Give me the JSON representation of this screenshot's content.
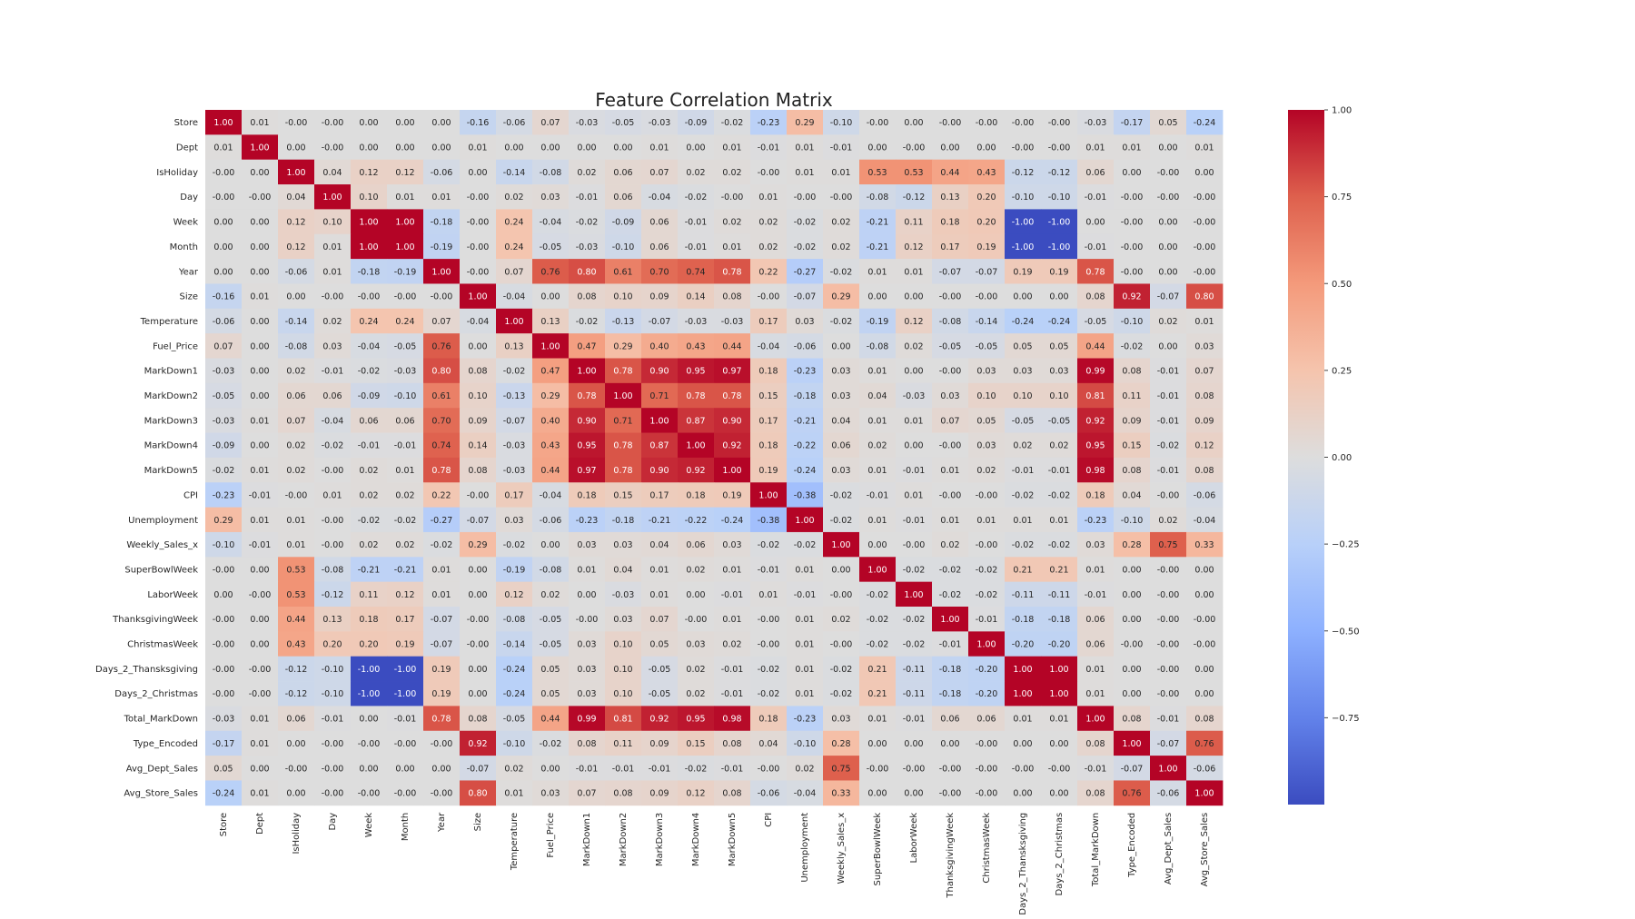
{
  "chart_data": {
    "type": "heatmap",
    "title": "Feature Correlation Matrix",
    "labels": [
      "Store",
      "Dept",
      "IsHoliday",
      "Day",
      "Week",
      "Month",
      "Year",
      "Size",
      "Temperature",
      "Fuel_Price",
      "MarkDown1",
      "MarkDown2",
      "MarkDown3",
      "MarkDown4",
      "MarkDown5",
      "CPI",
      "Unemployment",
      "Weekly_Sales_x",
      "SuperBowlWeek",
      "LaborWeek",
      "ThanksgivingWeek",
      "ChristmasWeek",
      "Days_2_Thansksgiving",
      "Days_2_Christmas",
      "Total_MarkDown",
      "Type_Encoded",
      "Avg_Dept_Sales",
      "Avg_Store_Sales"
    ],
    "matrix": [
      [
        1.0,
        0.01,
        -0.0,
        -0.0,
        0.0,
        0.0,
        0.0,
        -0.16,
        -0.06,
        0.07,
        -0.03,
        -0.05,
        -0.03,
        -0.09,
        -0.02,
        -0.23,
        0.29,
        -0.1,
        -0.0,
        0.0,
        -0.0,
        -0.0,
        -0.0,
        -0.0,
        -0.03,
        -0.17,
        0.05,
        -0.24
      ],
      [
        0.01,
        1.0,
        0.0,
        -0.0,
        0.0,
        0.0,
        0.0,
        0.01,
        0.0,
        0.0,
        0.0,
        0.0,
        0.01,
        0.0,
        0.01,
        -0.01,
        0.01,
        -0.01,
        0.0,
        -0.0,
        0.0,
        0.0,
        -0.0,
        -0.0,
        0.01,
        0.01,
        0.0,
        0.01
      ],
      [
        -0.0,
        0.0,
        1.0,
        0.04,
        0.12,
        0.12,
        -0.06,
        0.0,
        -0.14,
        -0.08,
        0.02,
        0.06,
        0.07,
        0.02,
        0.02,
        -0.0,
        0.01,
        0.01,
        0.53,
        0.53,
        0.44,
        0.43,
        -0.12,
        -0.12,
        0.06,
        0.0,
        -0.0,
        0.0
      ],
      [
        -0.0,
        -0.0,
        0.04,
        1.0,
        0.1,
        0.01,
        0.01,
        -0.0,
        0.02,
        0.03,
        -0.01,
        0.06,
        -0.04,
        -0.02,
        -0.0,
        0.01,
        -0.0,
        -0.0,
        -0.08,
        -0.12,
        0.13,
        0.2,
        -0.1,
        -0.1,
        -0.01,
        -0.0,
        -0.0,
        -0.0
      ],
      [
        0.0,
        0.0,
        0.12,
        0.1,
        1.0,
        1.0,
        -0.18,
        -0.0,
        0.24,
        -0.04,
        -0.02,
        -0.09,
        0.06,
        -0.01,
        0.02,
        0.02,
        -0.02,
        0.02,
        -0.21,
        0.11,
        0.18,
        0.2,
        -1.0,
        -1.0,
        0.0,
        -0.0,
        0.0,
        -0.0
      ],
      [
        0.0,
        0.0,
        0.12,
        0.01,
        1.0,
        1.0,
        -0.19,
        -0.0,
        0.24,
        -0.05,
        -0.03,
        -0.1,
        0.06,
        -0.01,
        0.01,
        0.02,
        -0.02,
        0.02,
        -0.21,
        0.12,
        0.17,
        0.19,
        -1.0,
        -1.0,
        -0.01,
        -0.0,
        0.0,
        -0.0
      ],
      [
        0.0,
        0.0,
        -0.06,
        0.01,
        -0.18,
        -0.19,
        1.0,
        -0.0,
        0.07,
        0.76,
        0.8,
        0.61,
        0.7,
        0.74,
        0.78,
        0.22,
        -0.27,
        -0.02,
        0.01,
        0.01,
        -0.07,
        -0.07,
        0.19,
        0.19,
        0.78,
        -0.0,
        0.0,
        -0.0
      ],
      [
        -0.16,
        0.01,
        0.0,
        -0.0,
        -0.0,
        -0.0,
        -0.0,
        1.0,
        -0.04,
        0.0,
        0.08,
        0.1,
        0.09,
        0.14,
        0.08,
        -0.0,
        -0.07,
        0.29,
        0.0,
        0.0,
        -0.0,
        -0.0,
        0.0,
        0.0,
        0.08,
        0.92,
        -0.07,
        0.8
      ],
      [
        -0.06,
        0.0,
        -0.14,
        0.02,
        0.24,
        0.24,
        0.07,
        -0.04,
        1.0,
        0.13,
        -0.02,
        -0.13,
        -0.07,
        -0.03,
        -0.03,
        0.17,
        0.03,
        -0.02,
        -0.19,
        0.12,
        -0.08,
        -0.14,
        -0.24,
        -0.24,
        -0.05,
        -0.1,
        0.02,
        0.01
      ],
      [
        0.07,
        0.0,
        -0.08,
        0.03,
        -0.04,
        -0.05,
        0.76,
        0.0,
        0.13,
        1.0,
        0.47,
        0.29,
        0.4,
        0.43,
        0.44,
        -0.04,
        -0.06,
        0.0,
        -0.08,
        0.02,
        -0.05,
        -0.05,
        0.05,
        0.05,
        0.44,
        -0.02,
        0.0,
        0.03
      ],
      [
        -0.03,
        0.0,
        0.02,
        -0.01,
        -0.02,
        -0.03,
        0.8,
        0.08,
        -0.02,
        0.47,
        1.0,
        0.78,
        0.9,
        0.95,
        0.97,
        0.18,
        -0.23,
        0.03,
        0.01,
        0.0,
        -0.0,
        0.03,
        0.03,
        0.03,
        0.99,
        0.08,
        -0.01,
        0.07
      ],
      [
        -0.05,
        0.0,
        0.06,
        0.06,
        -0.09,
        -0.1,
        0.61,
        0.1,
        -0.13,
        0.29,
        0.78,
        1.0,
        0.71,
        0.78,
        0.78,
        0.15,
        -0.18,
        0.03,
        0.04,
        -0.03,
        0.03,
        0.1,
        0.1,
        0.1,
        0.81,
        0.11,
        -0.01,
        0.08
      ],
      [
        -0.03,
        0.01,
        0.07,
        -0.04,
        0.06,
        0.06,
        0.7,
        0.09,
        -0.07,
        0.4,
        0.9,
        0.71,
        1.0,
        0.87,
        0.9,
        0.17,
        -0.21,
        0.04,
        0.01,
        0.01,
        0.07,
        0.05,
        -0.05,
        -0.05,
        0.92,
        0.09,
        -0.01,
        0.09
      ],
      [
        -0.09,
        0.0,
        0.02,
        -0.02,
        -0.01,
        -0.01,
        0.74,
        0.14,
        -0.03,
        0.43,
        0.95,
        0.78,
        0.87,
        1.0,
        0.92,
        0.18,
        -0.22,
        0.06,
        0.02,
        0.0,
        -0.0,
        0.03,
        0.02,
        0.02,
        0.95,
        0.15,
        -0.02,
        0.12
      ],
      [
        -0.02,
        0.01,
        0.02,
        -0.0,
        0.02,
        0.01,
        0.78,
        0.08,
        -0.03,
        0.44,
        0.97,
        0.78,
        0.9,
        0.92,
        1.0,
        0.19,
        -0.24,
        0.03,
        0.01,
        -0.01,
        0.01,
        0.02,
        -0.01,
        -0.01,
        0.98,
        0.08,
        -0.01,
        0.08
      ],
      [
        -0.23,
        -0.01,
        -0.0,
        0.01,
        0.02,
        0.02,
        0.22,
        -0.0,
        0.17,
        -0.04,
        0.18,
        0.15,
        0.17,
        0.18,
        0.19,
        1.0,
        -0.38,
        -0.02,
        -0.01,
        0.01,
        -0.0,
        -0.0,
        -0.02,
        -0.02,
        0.18,
        0.04,
        -0.0,
        -0.06
      ],
      [
        0.29,
        0.01,
        0.01,
        -0.0,
        -0.02,
        -0.02,
        -0.27,
        -0.07,
        0.03,
        -0.06,
        -0.23,
        -0.18,
        -0.21,
        -0.22,
        -0.24,
        -0.38,
        1.0,
        -0.02,
        0.01,
        -0.01,
        0.01,
        0.01,
        0.01,
        0.01,
        -0.23,
        -0.1,
        0.02,
        -0.04
      ],
      [
        -0.1,
        -0.01,
        0.01,
        -0.0,
        0.02,
        0.02,
        -0.02,
        0.29,
        -0.02,
        0.0,
        0.03,
        0.03,
        0.04,
        0.06,
        0.03,
        -0.02,
        -0.02,
        1.0,
        0.0,
        -0.0,
        0.02,
        -0.0,
        -0.02,
        -0.02,
        0.03,
        0.28,
        0.75,
        0.33
      ],
      [
        -0.0,
        0.0,
        0.53,
        -0.08,
        -0.21,
        -0.21,
        0.01,
        0.0,
        -0.19,
        -0.08,
        0.01,
        0.04,
        0.01,
        0.02,
        0.01,
        -0.01,
        0.01,
        0.0,
        1.0,
        -0.02,
        -0.02,
        -0.02,
        0.21,
        0.21,
        0.01,
        0.0,
        -0.0,
        0.0
      ],
      [
        0.0,
        -0.0,
        0.53,
        -0.12,
        0.11,
        0.12,
        0.01,
        0.0,
        0.12,
        0.02,
        0.0,
        -0.03,
        0.01,
        0.0,
        -0.01,
        0.01,
        -0.01,
        -0.0,
        -0.02,
        1.0,
        -0.02,
        -0.02,
        -0.11,
        -0.11,
        -0.01,
        0.0,
        -0.0,
        0.0
      ],
      [
        -0.0,
        0.0,
        0.44,
        0.13,
        0.18,
        0.17,
        -0.07,
        -0.0,
        -0.08,
        -0.05,
        -0.0,
        0.03,
        0.07,
        -0.0,
        0.01,
        -0.0,
        0.01,
        0.02,
        -0.02,
        -0.02,
        1.0,
        -0.01,
        -0.18,
        -0.18,
        0.06,
        0.0,
        -0.0,
        -0.0
      ],
      [
        -0.0,
        0.0,
        0.43,
        0.2,
        0.2,
        0.19,
        -0.07,
        -0.0,
        -0.14,
        -0.05,
        0.03,
        0.1,
        0.05,
        0.03,
        0.02,
        -0.0,
        0.01,
        -0.0,
        -0.02,
        -0.02,
        -0.01,
        1.0,
        -0.2,
        -0.2,
        0.06,
        -0.0,
        -0.0,
        -0.0
      ],
      [
        -0.0,
        -0.0,
        -0.12,
        -0.1,
        -1.0,
        -1.0,
        0.19,
        0.0,
        -0.24,
        0.05,
        0.03,
        0.1,
        -0.05,
        0.02,
        -0.01,
        -0.02,
        0.01,
        -0.02,
        0.21,
        -0.11,
        -0.18,
        -0.2,
        1.0,
        1.0,
        0.01,
        0.0,
        -0.0,
        0.0
      ],
      [
        -0.0,
        -0.0,
        -0.12,
        -0.1,
        -1.0,
        -1.0,
        0.19,
        0.0,
        -0.24,
        0.05,
        0.03,
        0.1,
        -0.05,
        0.02,
        -0.01,
        -0.02,
        0.01,
        -0.02,
        0.21,
        -0.11,
        -0.18,
        -0.2,
        1.0,
        1.0,
        0.01,
        0.0,
        -0.0,
        0.0
      ],
      [
        -0.03,
        0.01,
        0.06,
        -0.01,
        0.0,
        -0.01,
        0.78,
        0.08,
        -0.05,
        0.44,
        0.99,
        0.81,
        0.92,
        0.95,
        0.98,
        0.18,
        -0.23,
        0.03,
        0.01,
        -0.01,
        0.06,
        0.06,
        0.01,
        0.01,
        1.0,
        0.08,
        -0.01,
        0.08
      ],
      [
        -0.17,
        0.01,
        0.0,
        -0.0,
        -0.0,
        -0.0,
        -0.0,
        0.92,
        -0.1,
        -0.02,
        0.08,
        0.11,
        0.09,
        0.15,
        0.08,
        0.04,
        -0.1,
        0.28,
        0.0,
        0.0,
        0.0,
        -0.0,
        0.0,
        0.0,
        0.08,
        1.0,
        -0.07,
        0.76
      ],
      [
        0.05,
        0.0,
        -0.0,
        -0.0,
        0.0,
        0.0,
        0.0,
        -0.07,
        0.02,
        0.0,
        -0.01,
        -0.01,
        -0.01,
        -0.02,
        -0.01,
        -0.0,
        0.02,
        0.75,
        -0.0,
        -0.0,
        -0.0,
        -0.0,
        -0.0,
        -0.0,
        -0.01,
        -0.07,
        1.0,
        -0.06
      ],
      [
        -0.24,
        0.01,
        0.0,
        -0.0,
        -0.0,
        -0.0,
        -0.0,
        0.8,
        0.01,
        0.03,
        0.07,
        0.08,
        0.09,
        0.12,
        0.08,
        -0.06,
        -0.04,
        0.33,
        0.0,
        0.0,
        -0.0,
        -0.0,
        0.0,
        0.0,
        0.08,
        0.76,
        -0.06,
        1.0
      ]
    ],
    "colorscale": "coolwarm",
    "vmin": -1.0,
    "vmax": 1.0,
    "colorbar_ticks": [
      "1.00",
      "0.75",
      "0.50",
      "0.25",
      "0.00",
      "−0.25",
      "−0.50",
      "−0.75"
    ],
    "colorbar_tick_values": [
      1.0,
      0.75,
      0.5,
      0.25,
      0.0,
      -0.25,
      -0.5,
      -0.75
    ],
    "xlabel": "",
    "ylabel": ""
  }
}
